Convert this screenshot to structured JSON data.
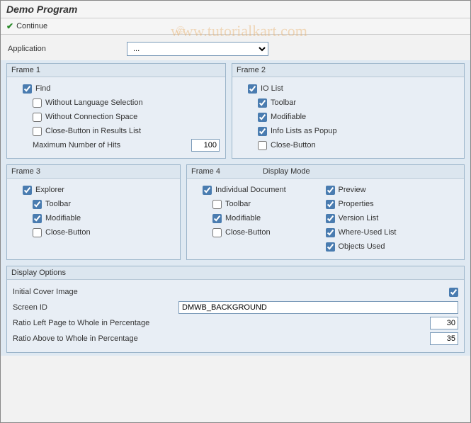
{
  "header": {
    "title": "Demo Program"
  },
  "toolbar": {
    "continue_label": "Continue"
  },
  "watermark": {
    "text": "www.tutorialkart.com",
    "copyright": "©"
  },
  "application": {
    "label": "Application",
    "value": "..."
  },
  "frame1": {
    "title": "Frame 1",
    "find": {
      "label": "Find",
      "checked": true
    },
    "without_lang": {
      "label": "Without Language Selection",
      "checked": false
    },
    "without_conn": {
      "label": "Without Connection Space",
      "checked": false
    },
    "close_btn_results": {
      "label": "Close-Button in Results List",
      "checked": false
    },
    "max_hits": {
      "label": "Maximum Number of Hits",
      "value": "100"
    }
  },
  "frame2": {
    "title": "Frame 2",
    "io_list": {
      "label": "IO List",
      "checked": true
    },
    "toolbar": {
      "label": "Toolbar",
      "checked": true
    },
    "modifiable": {
      "label": "Modifiable",
      "checked": true
    },
    "info_popup": {
      "label": "Info Lists as Popup",
      "checked": true
    },
    "close_btn": {
      "label": "Close-Button",
      "checked": false
    }
  },
  "frame3": {
    "title": "Frame 3",
    "explorer": {
      "label": "Explorer",
      "checked": true
    },
    "toolbar": {
      "label": "Toolbar",
      "checked": true
    },
    "modifiable": {
      "label": "Modifiable",
      "checked": true
    },
    "close_btn": {
      "label": "Close-Button",
      "checked": false
    }
  },
  "frame4": {
    "title": "Frame 4",
    "title_extra": "Display Mode",
    "individual": {
      "label": "Individual Document",
      "checked": true
    },
    "toolbar": {
      "label": "Toolbar",
      "checked": false
    },
    "modifiable": {
      "label": "Modifiable",
      "checked": true
    },
    "close_btn": {
      "label": "Close-Button",
      "checked": false
    },
    "preview": {
      "label": "Preview",
      "checked": true
    },
    "properties": {
      "label": "Properties",
      "checked": true
    },
    "version_list": {
      "label": "Version List",
      "checked": true
    },
    "where_used": {
      "label": "Where-Used List",
      "checked": true
    },
    "objects_used": {
      "label": "Objects Used",
      "checked": true
    }
  },
  "display_options": {
    "title": "Display Options",
    "initial_cover": {
      "label": "Initial Cover Image",
      "checked": true
    },
    "screen_id": {
      "label": "Screen ID",
      "value": "DMWB_BACKGROUND"
    },
    "ratio_left": {
      "label": "Ratio Left Page to Whole in Percentage",
      "value": "30"
    },
    "ratio_above": {
      "label": "Ratio Above to Whole in Percentage",
      "value": "35"
    }
  }
}
